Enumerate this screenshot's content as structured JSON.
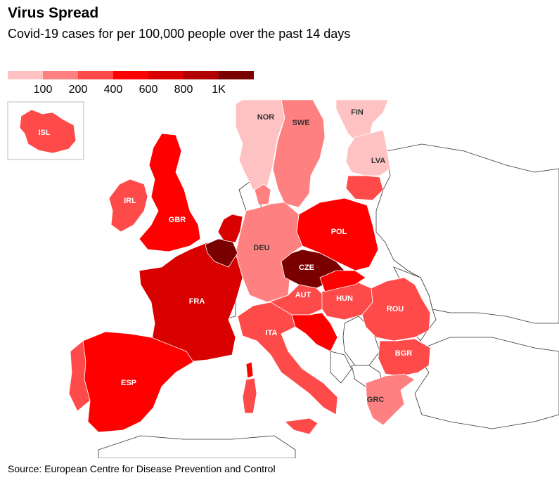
{
  "title": "Virus Spread",
  "subtitle": "Covid-19 cases for per 100,000 people over the past 14 days",
  "legend": {
    "colors": [
      "#ffc2c2",
      "#ff8080",
      "#ff4a4a",
      "#ff0000",
      "#d90000",
      "#b00000",
      "#7a0000"
    ],
    "labels": [
      "100",
      "200",
      "400",
      "600",
      "800",
      "1K"
    ]
  },
  "countries": [
    {
      "code": "ISL",
      "bin": 2
    },
    {
      "code": "NOR",
      "bin": 0
    },
    {
      "code": "SWE",
      "bin": 1
    },
    {
      "code": "FIN",
      "bin": 0
    },
    {
      "code": "LVA",
      "bin": 0
    },
    {
      "code": "IRL",
      "bin": 2
    },
    {
      "code": "GBR",
      "bin": 3
    },
    {
      "code": "POL",
      "bin": 3
    },
    {
      "code": "DEU",
      "bin": 1
    },
    {
      "code": "CZE",
      "bin": 6
    },
    {
      "code": "FRA",
      "bin": 4
    },
    {
      "code": "AUT",
      "bin": 2
    },
    {
      "code": "HUN",
      "bin": 2
    },
    {
      "code": "ROU",
      "bin": 2
    },
    {
      "code": "ITA",
      "bin": 2
    },
    {
      "code": "BGR",
      "bin": 2
    },
    {
      "code": "ESP",
      "bin": 3
    },
    {
      "code": "GRC",
      "bin": 1
    }
  ],
  "source": "Source: European Centre for Disease Prevention and Control"
}
